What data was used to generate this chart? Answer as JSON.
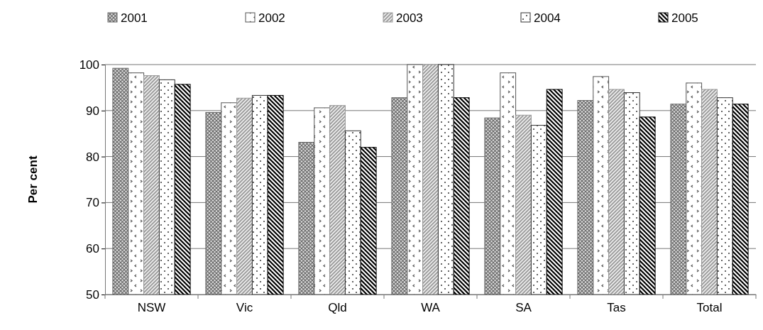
{
  "chart_data": {
    "type": "bar",
    "ylabel": "Per cent",
    "categories": [
      "NSW",
      "Vic",
      "Qld",
      "WA",
      "SA",
      "Tas",
      "Total"
    ],
    "series": [
      {
        "name": "2001",
        "color": "#666666",
        "values": [
          99.2,
          89.6,
          83.1,
          92.8,
          88.4,
          92.2,
          91.4
        ]
      },
      {
        "name": "2002",
        "color": "#555555",
        "values": [
          98.2,
          91.7,
          90.6,
          100,
          98.2,
          97.4,
          96.0
        ]
      },
      {
        "name": "2003",
        "color": "#999999",
        "values": [
          97.6,
          92.7,
          91.1,
          100,
          89.0,
          94.6,
          94.6
        ]
      },
      {
        "name": "2004",
        "color": "#333333",
        "values": [
          96.7,
          93.3,
          85.6,
          100,
          86.8,
          93.9,
          92.8
        ]
      },
      {
        "name": "2005",
        "color": "#000000",
        "values": [
          95.7,
          93.3,
          82.0,
          92.8,
          94.6,
          88.6,
          91.4
        ]
      }
    ],
    "ylim": [
      50,
      100
    ],
    "yticks": [
      50,
      60,
      70,
      80,
      90,
      100
    ],
    "grid": "y",
    "legend": "top"
  }
}
